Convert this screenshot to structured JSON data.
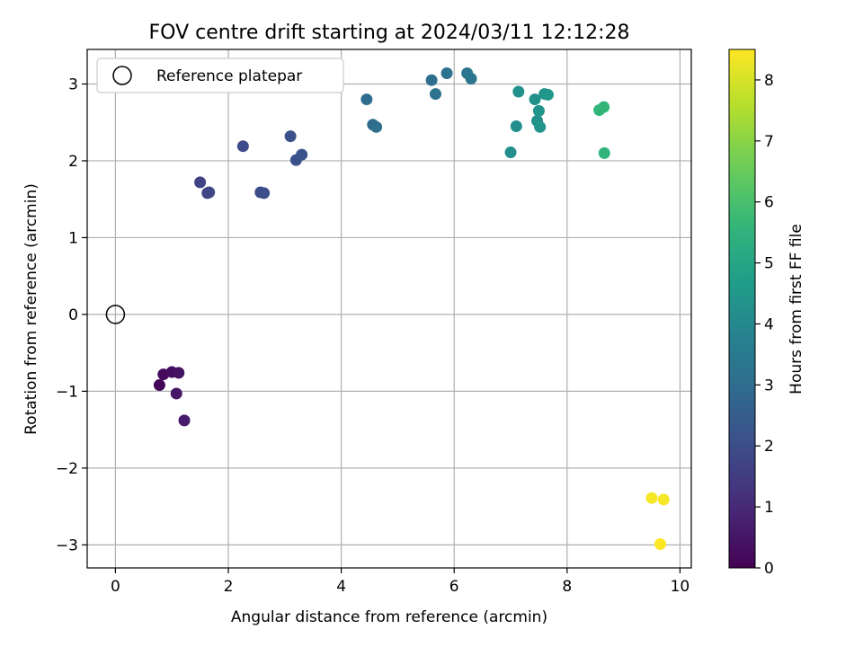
{
  "chart_data": {
    "type": "scatter",
    "title": "FOV centre drift starting at 2024/03/11 12:12:28",
    "xlabel": "Angular distance from reference (arcmin)",
    "ylabel": "Rotation from reference (arcmin)",
    "xlim": [
      -0.5,
      10.2
    ],
    "ylim": [
      -3.3,
      3.45
    ],
    "xticks": [
      "0",
      "2",
      "4",
      "6",
      "8",
      "10"
    ],
    "yticks": [
      "−3",
      "−2",
      "−1",
      "0",
      "1",
      "2",
      "3"
    ],
    "grid": true,
    "legend": {
      "position": "top-left",
      "entries": [
        "Reference platepar"
      ]
    },
    "reference": {
      "x": 0,
      "y": 0,
      "label": "Reference platepar"
    },
    "colorbar": {
      "label": "Hours from first FF file",
      "range": [
        0,
        8.5
      ],
      "ticks": [
        "0",
        "1",
        "2",
        "3",
        "4",
        "5",
        "6",
        "7",
        "8"
      ],
      "colormap": "viridis"
    },
    "points": [
      {
        "x": 0.78,
        "y": -0.92,
        "h": 0.1
      },
      {
        "x": 0.85,
        "y": -0.78,
        "h": 0.2
      },
      {
        "x": 1.0,
        "y": -0.75,
        "h": 0.3
      },
      {
        "x": 1.12,
        "y": -0.76,
        "h": 0.4
      },
      {
        "x": 1.08,
        "y": -1.03,
        "h": 0.5
      },
      {
        "x": 1.22,
        "y": -1.38,
        "h": 0.6
      },
      {
        "x": 1.5,
        "y": 1.72,
        "h": 1.7
      },
      {
        "x": 1.63,
        "y": 1.58,
        "h": 1.8
      },
      {
        "x": 1.66,
        "y": 1.59,
        "h": 1.8
      },
      {
        "x": 2.26,
        "y": 2.19,
        "h": 1.9
      },
      {
        "x": 2.57,
        "y": 1.59,
        "h": 2.0
      },
      {
        "x": 2.63,
        "y": 1.58,
        "h": 2.0
      },
      {
        "x": 3.1,
        "y": 2.32,
        "h": 2.1
      },
      {
        "x": 3.2,
        "y": 2.01,
        "h": 2.1
      },
      {
        "x": 3.3,
        "y": 2.08,
        "h": 2.2
      },
      {
        "x": 4.45,
        "y": 2.8,
        "h": 3.0
      },
      {
        "x": 4.56,
        "y": 2.47,
        "h": 3.0
      },
      {
        "x": 4.62,
        "y": 2.44,
        "h": 3.1
      },
      {
        "x": 5.6,
        "y": 3.05,
        "h": 3.1
      },
      {
        "x": 5.67,
        "y": 2.87,
        "h": 3.2
      },
      {
        "x": 5.87,
        "y": 3.14,
        "h": 3.2
      },
      {
        "x": 6.23,
        "y": 3.14,
        "h": 3.3
      },
      {
        "x": 6.3,
        "y": 3.07,
        "h": 3.3
      },
      {
        "x": 7.0,
        "y": 2.11,
        "h": 4.2
      },
      {
        "x": 7.1,
        "y": 2.45,
        "h": 4.2
      },
      {
        "x": 7.14,
        "y": 2.9,
        "h": 4.3
      },
      {
        "x": 7.43,
        "y": 2.8,
        "h": 4.3
      },
      {
        "x": 7.47,
        "y": 2.52,
        "h": 4.3
      },
      {
        "x": 7.5,
        "y": 2.65,
        "h": 4.4
      },
      {
        "x": 7.52,
        "y": 2.44,
        "h": 4.4
      },
      {
        "x": 7.6,
        "y": 2.87,
        "h": 4.4
      },
      {
        "x": 7.66,
        "y": 2.86,
        "h": 4.5
      },
      {
        "x": 8.57,
        "y": 2.66,
        "h": 5.6
      },
      {
        "x": 8.65,
        "y": 2.7,
        "h": 5.6
      },
      {
        "x": 8.66,
        "y": 2.1,
        "h": 5.5
      },
      {
        "x": 9.5,
        "y": -2.39,
        "h": 8.4
      },
      {
        "x": 9.71,
        "y": -2.41,
        "h": 8.4
      },
      {
        "x": 9.65,
        "y": -2.99,
        "h": 8.5
      }
    ]
  }
}
